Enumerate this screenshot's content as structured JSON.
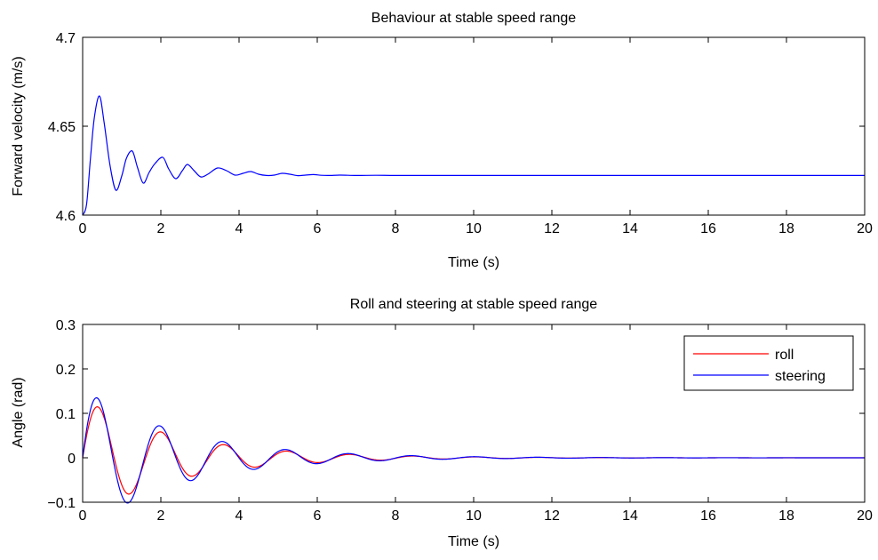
{
  "chart_data": [
    {
      "type": "line",
      "title": "Behaviour at stable speed range",
      "xlabel": "Time (s)",
      "ylabel": "Forward velocity (m/s)",
      "xlim": [
        0,
        20
      ],
      "ylim": [
        4.6,
        4.7
      ],
      "xticks": [
        0,
        2,
        4,
        6,
        8,
        10,
        12,
        14,
        16,
        18,
        20
      ],
      "xtick_labels": [
        "0",
        "2",
        "4",
        "6",
        "8",
        "10",
        "12",
        "14",
        "16",
        "18",
        "20"
      ],
      "yticks": [
        4.6,
        4.65,
        4.7
      ],
      "ytick_labels": [
        "4.6",
        "4.65",
        "4.7"
      ],
      "grid": false,
      "series": [
        {
          "color": "#0000ff",
          "x": [
            0,
            0.1,
            0.2,
            0.3,
            0.43,
            0.55,
            0.7,
            0.85,
            1.0,
            1.12,
            1.27,
            1.4,
            1.55,
            1.7,
            1.85,
            2.05,
            2.2,
            2.38,
            2.55,
            2.68,
            2.85,
            3.02,
            3.2,
            3.45,
            3.68,
            3.9,
            4.1,
            4.3,
            4.5,
            4.7,
            4.9,
            5.1,
            5.3,
            5.5,
            5.7,
            5.9,
            6.1,
            6.3,
            6.6,
            7.0,
            7.5,
            8.0,
            9.0,
            10.0,
            12.0,
            14.0,
            16.0,
            18.0,
            20.0
          ],
          "y": [
            4.6,
            4.606,
            4.632,
            4.655,
            4.667,
            4.652,
            4.628,
            4.614,
            4.622,
            4.632,
            4.636,
            4.627,
            4.618,
            4.624,
            4.629,
            4.6325,
            4.626,
            4.6205,
            4.625,
            4.6285,
            4.625,
            4.6215,
            4.623,
            4.6265,
            4.625,
            4.6225,
            4.6235,
            4.6245,
            4.623,
            4.6223,
            4.6225,
            4.6235,
            4.623,
            4.6222,
            4.6225,
            4.6228,
            4.6224,
            4.6223,
            4.6225,
            4.6223,
            4.6224,
            4.6223,
            4.6223,
            4.6223,
            4.6223,
            4.6223,
            4.6223,
            4.6223,
            4.6223
          ]
        }
      ]
    },
    {
      "type": "line",
      "title": "Roll and steering at stable speed range",
      "xlabel": "Time (s)",
      "ylabel": "Angle (rad)",
      "xlim": [
        0,
        20
      ],
      "ylim": [
        -0.1,
        0.3
      ],
      "xticks": [
        0,
        2,
        4,
        6,
        8,
        10,
        12,
        14,
        16,
        18,
        20
      ],
      "xtick_labels": [
        "0",
        "2",
        "4",
        "6",
        "8",
        "10",
        "12",
        "14",
        "16",
        "18",
        "20"
      ],
      "yticks": [
        -0.1,
        0,
        0.1,
        0.2,
        0.3
      ],
      "ytick_labels": [
        "−0.1",
        "0",
        "0.1",
        "0.2",
        "0.3"
      ],
      "grid": false,
      "legend": {
        "position": "top-right"
      },
      "series": [
        {
          "name": "roll",
          "color": "#ff0000",
          "model": {
            "amplitude": 0.135,
            "decay": 0.42,
            "omega": 3.9,
            "phase": 0.0
          }
        },
        {
          "name": "steering",
          "color": "#0000ff",
          "model": {
            "amplitude": 0.165,
            "decay": 0.42,
            "omega": 3.9,
            "phase": 0.12
          }
        }
      ]
    }
  ]
}
